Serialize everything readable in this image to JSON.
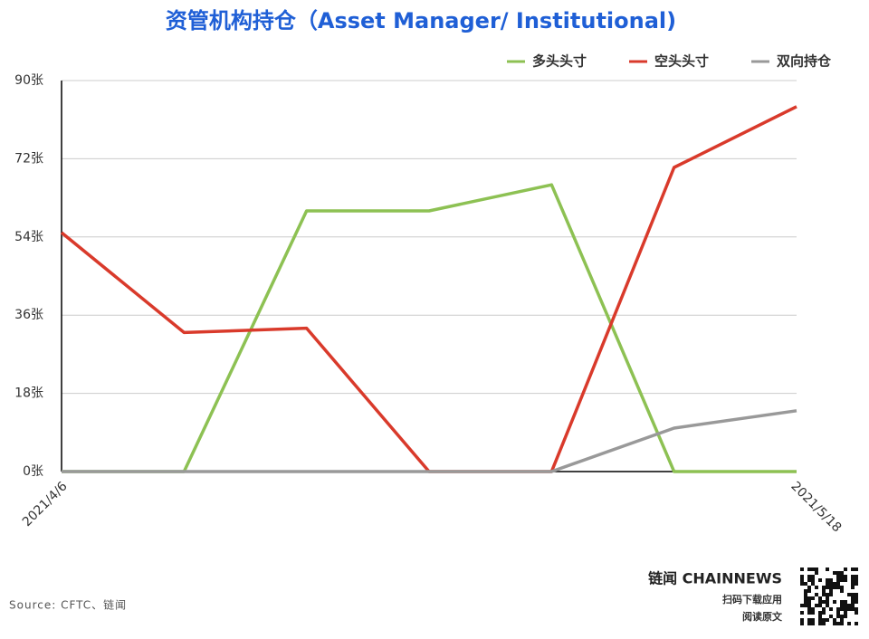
{
  "chart_data": {
    "type": "line",
    "title": "资管机构持仓（Asset Manager/ Institutional)",
    "categories": [
      "2021/4/6",
      null,
      null,
      null,
      null,
      null,
      "2021/5/18"
    ],
    "series": [
      {
        "name": "多头头寸",
        "color": "#8dc153",
        "values": [
          0,
          0,
          60,
          60,
          66,
          0,
          0
        ]
      },
      {
        "name": "空头头寸",
        "color": "#d93a2b",
        "values": [
          55,
          32,
          33,
          0,
          0,
          70,
          84
        ]
      },
      {
        "name": "双向持仓",
        "color": "#999999",
        "values": [
          0,
          0,
          0,
          0,
          0,
          10,
          14
        ]
      }
    ],
    "ylim": [
      0,
      90
    ],
    "yticks": [
      {
        "value": 0,
        "label": "0张"
      },
      {
        "value": 18,
        "label": "18张"
      },
      {
        "value": 36,
        "label": "36张"
      },
      {
        "value": 54,
        "label": "54张"
      },
      {
        "value": 72,
        "label": "72张"
      },
      {
        "value": 90,
        "label": "90张"
      }
    ],
    "grid": true,
    "legend": "top-right",
    "source": "Source: CFTC、链闻",
    "brand": "链闻 CHAINNEWS",
    "brand_line1": "扫码下载应用",
    "brand_line2": "阅读原文"
  }
}
